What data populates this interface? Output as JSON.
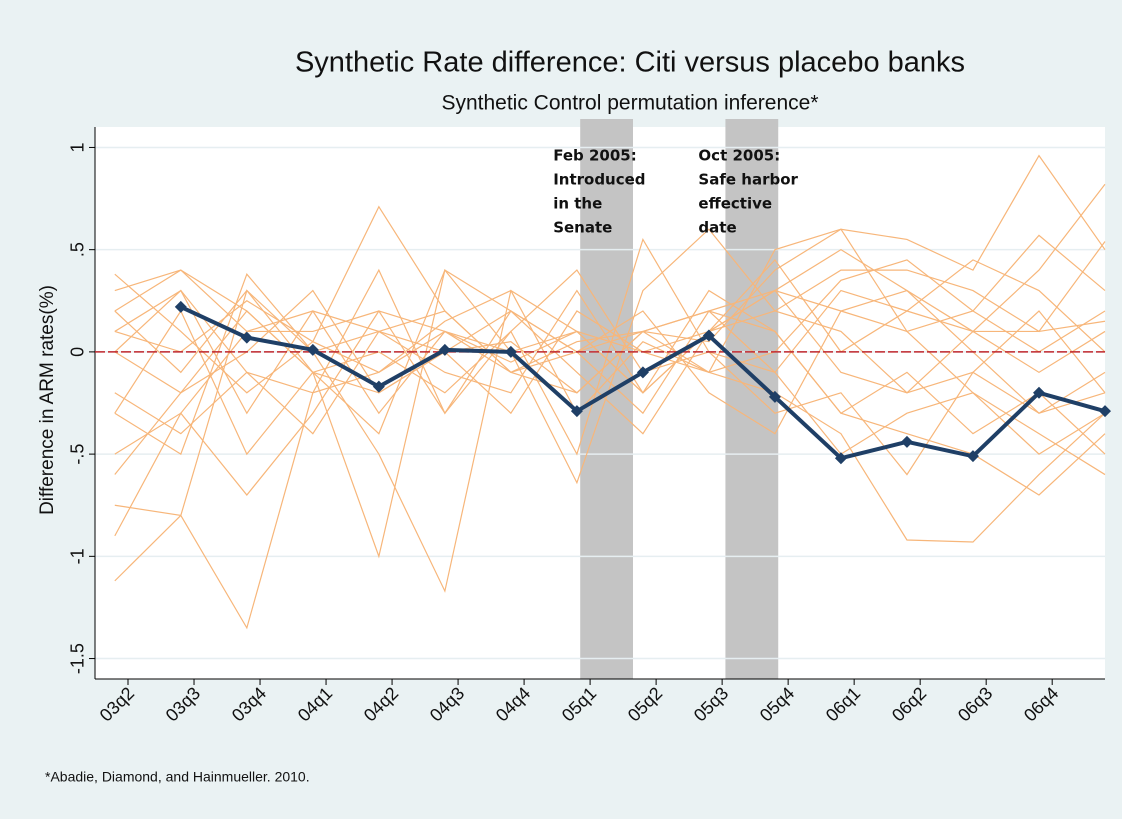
{
  "chart_data": {
    "type": "line",
    "title": "Synthetic Rate difference: Citi versus placebo banks",
    "subtitle": "Synthetic Control permutation inference*",
    "y_label": "Difference in ARM rates(%)",
    "footnote": "*Abadie, Diamond, and Hainmueller. 2010.",
    "x": [
      -0.2,
      0.8,
      1.8,
      2.8,
      3.8,
      4.8,
      5.8,
      6.8,
      7.8,
      8.8,
      9.8,
      10.8,
      11.8,
      12.8,
      13.8,
      14.8
    ],
    "xlim": [
      -0.5,
      14.8
    ],
    "xticks": [
      {
        "value": 0,
        "label": "03q2"
      },
      {
        "value": 1,
        "label": "03q3"
      },
      {
        "value": 2,
        "label": "03q4"
      },
      {
        "value": 3,
        "label": "04q1"
      },
      {
        "value": 4,
        "label": "04q2"
      },
      {
        "value": 5,
        "label": "04q3"
      },
      {
        "value": 6,
        "label": "04q4"
      },
      {
        "value": 7,
        "label": "05q1"
      },
      {
        "value": 8,
        "label": "05q2"
      },
      {
        "value": 9,
        "label": "05q3"
      },
      {
        "value": 10,
        "label": "05q4"
      },
      {
        "value": 11,
        "label": "06q1"
      },
      {
        "value": 12,
        "label": "06q2"
      },
      {
        "value": 13,
        "label": "06q3"
      },
      {
        "value": 14,
        "label": "06q4"
      }
    ],
    "ylim": [
      -1.6,
      1.1
    ],
    "yticks": [
      1,
      {
        "value": 0.5,
        "label": ".5"
      },
      0,
      {
        "value": -0.5,
        "label": "-.5"
      },
      -1,
      -1.5
    ],
    "grid": true,
    "hline": {
      "value": 0,
      "color": "#c0272d"
    },
    "shaded_regions": [
      {
        "xlim": [
          6.85,
          7.65
        ],
        "color": "#c4c4c4",
        "label": [
          "Feb 2005:",
          "Introduced",
          "in the",
          "Senate"
        ]
      },
      {
        "xlim": [
          9.05,
          9.85
        ],
        "color": "#c4c4c4",
        "label": [
          "Oct 2005:",
          "Safe harbor",
          "effective",
          "date"
        ]
      }
    ],
    "placebo_series": {
      "color": "#f7b67a",
      "values": [
        [
          0.38,
          0.1,
          -0.2,
          0.05,
          0.71,
          0.2,
          -0.1,
          0.05,
          0.1,
          0.2,
          0.3,
          0.5,
          0.3,
          0.1,
          0.4,
          0.82
        ],
        [
          -1.12,
          -0.8,
          0.3,
          -0.1,
          -0.2,
          0,
          0.05,
          -0.2,
          0.1,
          0.05,
          0.4,
          0.6,
          0.55,
          0.4,
          0.96,
          0.5
        ],
        [
          -0.75,
          -0.8,
          -1.35,
          -0.2,
          -0.1,
          0.1,
          -0.05,
          0.1,
          0,
          -0.1,
          -0.2,
          -0.4,
          -0.92,
          -0.93,
          -0.6,
          -0.3
        ],
        [
          0.2,
          0.4,
          0.2,
          -0.1,
          -1,
          0.4,
          0.2,
          0,
          0.1,
          0.2,
          0.1,
          -0.3,
          -0.4,
          -0.5,
          -0.7,
          -0.4
        ],
        [
          -0.3,
          -0.5,
          0.38,
          0,
          -0.5,
          -1.17,
          0.3,
          0.1,
          -0.2,
          0.1,
          0.3,
          0.2,
          0.1,
          -0.2,
          -0.4,
          -0.6
        ],
        [
          0.3,
          0.4,
          0.1,
          0.1,
          0.2,
          -0.3,
          0.1,
          -0.5,
          0.55,
          0,
          -0.1,
          0.3,
          0.2,
          0.1,
          -0.1,
          0.1
        ],
        [
          -0.6,
          -0.2,
          0.2,
          -0.1,
          -0.4,
          0.4,
          0,
          -0.64,
          0.3,
          0.6,
          0.2,
          0.1,
          -0.2,
          -0.1,
          0.2,
          -0.2
        ],
        [
          0.1,
          0.3,
          -0.3,
          0.2,
          0.1,
          -0.1,
          -0.2,
          0.3,
          -0.2,
          0.1,
          0.45,
          0,
          0.2,
          0.45,
          0.3,
          0
        ],
        [
          -0.9,
          -0.3,
          -0.7,
          -0.3,
          0.2,
          0.1,
          -0.1,
          0,
          -0.3,
          0.2,
          -0.1,
          -0.5,
          -0.3,
          -0.2,
          -0.5,
          -0.3
        ],
        [
          0,
          -0.2,
          0,
          0.3,
          -0.2,
          0,
          0.2,
          -0.1,
          -0.4,
          0.1,
          0.2,
          0.4,
          0.4,
          0.3,
          0.1,
          0.54
        ],
        [
          -0.3,
          0.2,
          -0.5,
          -0.1,
          0,
          -0.2,
          0.1,
          0.4,
          -0.1,
          0,
          -0.3,
          -0.2,
          -0.6,
          -0.1,
          -0.3,
          -0.1
        ],
        [
          0.2,
          -0.1,
          0.3,
          0,
          0.1,
          0.2,
          -0.1,
          -0.2,
          0.1,
          -0.1,
          0.5,
          0.6,
          0.1,
          0.2,
          0.57,
          0.3
        ],
        [
          -0.5,
          -0.3,
          0.1,
          0.2,
          -0.3,
          0.1,
          0,
          0.1,
          -0.2,
          0.3,
          0.1,
          -0.3,
          -0.1,
          -0.4,
          -0.2,
          -0.5
        ],
        [
          0,
          0.3,
          -0.1,
          -0.2,
          0.4,
          -0.3,
          0.2,
          0,
          0.2,
          -0.2,
          -0.4,
          0.2,
          0.3,
          0,
          -0.3,
          -0.2
        ],
        [
          -0.2,
          -0.4,
          -0.1,
          -0.4,
          0.1,
          0,
          -0.3,
          0.2,
          0,
          0.1,
          0.3,
          -0.1,
          -0.2,
          0.1,
          0.1,
          0.15
        ],
        [
          0.1,
          0,
          0.25,
          0.05,
          -0.1,
          0.15,
          0.3,
          -0.3,
          0.05,
          -0.1,
          0,
          0.35,
          0.45,
          0.2,
          0,
          0.2
        ]
      ]
    },
    "series": [
      {
        "color": "#1f3f66",
        "values": [
          null,
          0.22,
          0.07,
          0.01,
          -0.17,
          0.01,
          0,
          -0.29,
          -0.1,
          0.08,
          -0.22,
          -0.52,
          -0.44,
          -0.51,
          -0.2,
          -0.29
        ]
      }
    ]
  }
}
